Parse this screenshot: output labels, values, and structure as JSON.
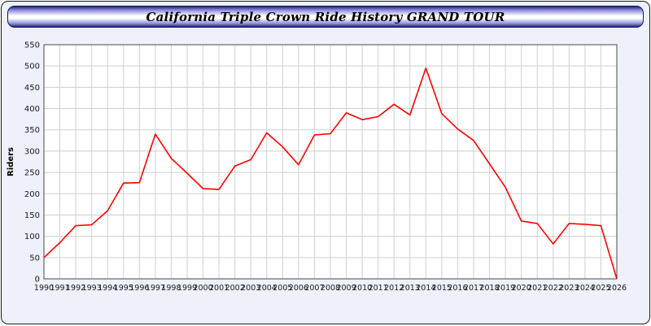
{
  "title": "California Triple Crown Ride History GRAND TOUR",
  "colors": {
    "page_background": "#eef0fa",
    "banner_border": "#14145e",
    "plot_background": "#ffffff",
    "gridline": "#cfcfcf",
    "plot_border": "#4a4a4a",
    "line": "#ff0000",
    "tick_text": "#1a1a1a"
  },
  "chart_data": {
    "type": "line",
    "title": "California Triple Crown Ride History GRAND TOUR",
    "xlabel": "",
    "ylabel": "Riders",
    "ylim": [
      0,
      550
    ],
    "ytick_step": 50,
    "grid": true,
    "legend": "none",
    "line_color": "#ff0000",
    "x": [
      "1990",
      "1991",
      "1992",
      "1993",
      "1994",
      "1995",
      "1996",
      "1997",
      "1998",
      "1999",
      "2000",
      "2001",
      "2002",
      "2003",
      "2004",
      "2005",
      "2006",
      "2007",
      "2008",
      "2009",
      "2010",
      "2011",
      "2012",
      "2013",
      "2014",
      "2015",
      "2016",
      "2017",
      "2018",
      "2019",
      "2020",
      "2021",
      "2022",
      "2023",
      "2024",
      "2025",
      "2026"
    ],
    "series": [
      {
        "name": "Riders",
        "values": [
          50,
          85,
          125,
          127,
          160,
          225,
          226,
          340,
          283,
          248,
          212,
          210,
          265,
          280,
          343,
          310,
          268,
          338,
          341,
          390,
          374,
          381,
          410,
          385,
          495,
          388,
          352,
          325,
          270,
          215,
          136,
          130,
          82,
          130,
          128,
          125,
          0
        ]
      }
    ]
  }
}
